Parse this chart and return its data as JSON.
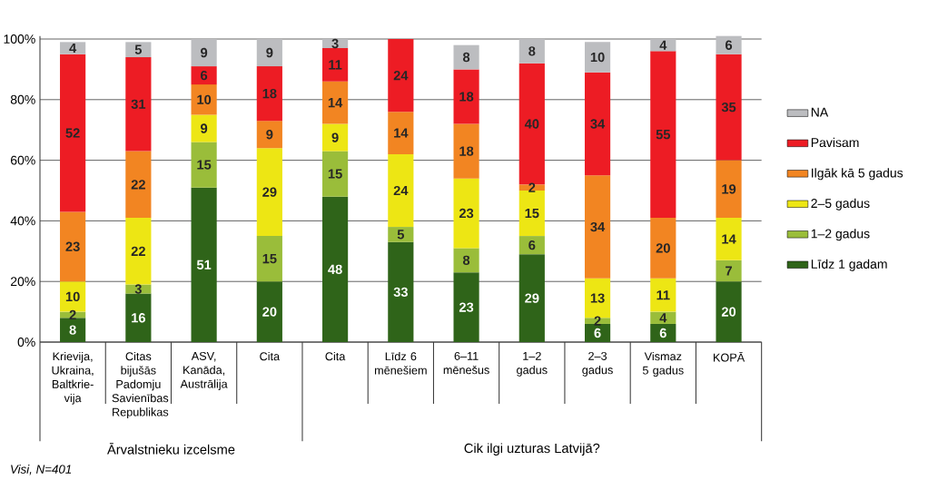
{
  "chart_data": {
    "type": "bar",
    "stacked": true,
    "data_labels": true,
    "grid": "y",
    "legend": "right",
    "categories": [
      "Krievija, Ukraina, Baltkrie-vija",
      "Citas bijušās Padomju Savienības Republikas",
      "ASV, Kanāda, Austrālija",
      "Cita",
      "Cita",
      "Līdz 6 mēnešiem",
      "6–11 mēnešus",
      "1–2 gadus",
      "2–3 gadus",
      "Vismaz 5 gadus",
      "KOPĀ"
    ],
    "series": [
      {
        "name": "Līdz 1 gadam",
        "color": "#2f6419",
        "values": [
          8,
          16,
          51,
          20,
          48,
          33,
          23,
          29,
          6,
          6,
          20
        ]
      },
      {
        "name": "1–2 gadus",
        "color": "#9abd3a",
        "values": [
          2,
          3,
          15,
          15,
          15,
          5,
          8,
          6,
          2,
          4,
          7
        ]
      },
      {
        "name": "2–5 gadus",
        "color": "#ede614",
        "values": [
          10,
          22,
          9,
          29,
          9,
          24,
          23,
          15,
          13,
          11,
          14
        ]
      },
      {
        "name": "Ilgāk kā 5 gadus",
        "color": "#f28522",
        "values": [
          23,
          22,
          10,
          9,
          14,
          14,
          18,
          2,
          34,
          20,
          19
        ]
      },
      {
        "name": "Pavisam",
        "color": "#ed1c24",
        "values": [
          52,
          31,
          6,
          18,
          11,
          24,
          18,
          40,
          34,
          55,
          35
        ]
      },
      {
        "name": "NA",
        "color": "#bcbdc0",
        "values": [
          4,
          5,
          9,
          9,
          3,
          null,
          8,
          8,
          10,
          4,
          6
        ]
      }
    ],
    "ylim": [
      0,
      101
    ],
    "yticks": [
      {
        "value": 0,
        "label": "0%"
      },
      {
        "value": 20,
        "label": "20%"
      },
      {
        "value": 40,
        "label": "40%"
      },
      {
        "value": 60,
        "label": "60%"
      },
      {
        "value": 80,
        "label": "80%"
      },
      {
        "value": 100,
        "label": "100%"
      }
    ],
    "annotations": [
      "Ārvalstnieku izcelsme",
      "Cik ilgi uzturas Latvijā?",
      "Visi, N=401"
    ]
  }
}
